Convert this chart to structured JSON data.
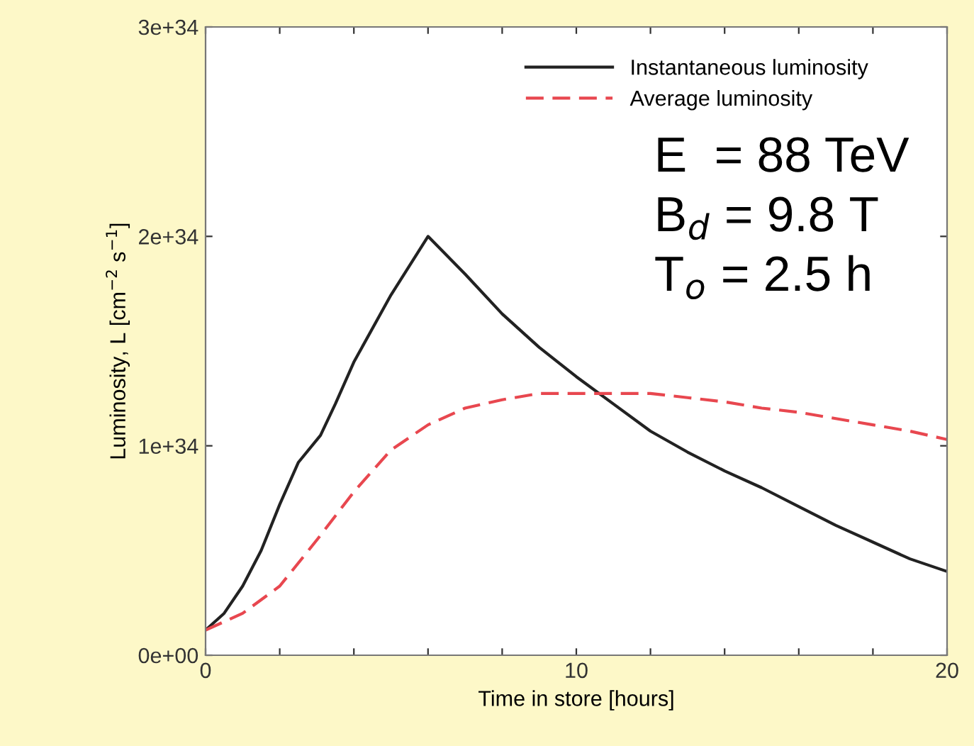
{
  "chart_data": {
    "type": "line",
    "xlabel": "Time in store [hours]",
    "ylabel": "Luminosity, L [cm$^{−2}$ s$^{−1}$]",
    "xlim": [
      0,
      20
    ],
    "ylim": [
      0,
      3e+34
    ],
    "xticks": [
      0,
      {
        "value": 2,
        "label": null
      },
      {
        "value": 4,
        "label": null
      },
      {
        "value": 6,
        "label": null
      },
      {
        "value": 8,
        "label": null
      },
      10,
      {
        "value": 12,
        "label": null
      },
      {
        "value": 14,
        "label": null
      },
      {
        "value": 16,
        "label": null
      },
      {
        "value": 18,
        "label": null
      },
      20
    ],
    "yticks": [
      {
        "value": 0,
        "label": "0e+00"
      },
      {
        "value": 1e+34,
        "label": "1e+34"
      },
      {
        "value": 2e+34,
        "label": "2e+34"
      },
      {
        "value": 3e+34,
        "label": "3e+34"
      }
    ],
    "grid": false,
    "legend": "top right",
    "series": [
      {
        "name": "Instantaneous luminosity",
        "color": "#222222",
        "line_style": "solid",
        "x": [
          0,
          0.5,
          1,
          1.5,
          2,
          2.5,
          3.1,
          3.5,
          4,
          5,
          6,
          7,
          8,
          9,
          10,
          11,
          12,
          13,
          14,
          15,
          16,
          17,
          18,
          19,
          20
        ],
        "values": [
          1.2e+33,
          2e+33,
          3.3e+33,
          5e+33,
          7.2e+33,
          9.2e+33,
          1.05e+34,
          1.2e+34,
          1.4e+34,
          1.72e+34,
          2e+34,
          1.82e+34,
          1.63e+34,
          1.47e+34,
          1.33e+34,
          1.2e+34,
          1.07e+34,
          9.7e+33,
          8.8e+33,
          8e+33,
          7.1e+33,
          6.2e+33,
          5.4e+33,
          4.6e+33,
          4e+33
        ]
      },
      {
        "name": "Average luminosity",
        "color": "#e8474f",
        "line_style": "dashed",
        "x": [
          0,
          1,
          2,
          3,
          4,
          5,
          6,
          7,
          8,
          9,
          10,
          11,
          12,
          13,
          14,
          15,
          16,
          17,
          18,
          19,
          20
        ],
        "values": [
          1.2e+33,
          2e+33,
          3.3e+33,
          5.5e+33,
          7.8e+33,
          9.8e+33,
          1.1e+34,
          1.18e+34,
          1.22e+34,
          1.25e+34,
          1.25e+34,
          1.25e+34,
          1.25e+34,
          1.23e+34,
          1.21e+34,
          1.18e+34,
          1.16e+34,
          1.13e+34,
          1.1e+34,
          1.07e+34,
          1.03e+34
        ]
      }
    ],
    "annotations": [
      "E  = 88 TeV",
      "B$_{d}$ = 9.8 T",
      "T$_{o}$ = 2.5 h"
    ]
  }
}
